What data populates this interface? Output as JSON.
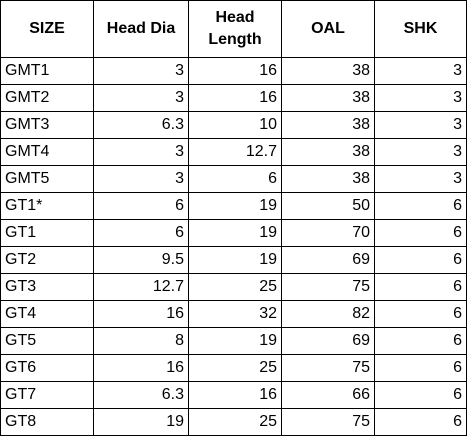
{
  "table": {
    "header": [
      "SIZE",
      "Head Dia",
      "Head Length",
      "OAL",
      "SHK"
    ],
    "rows": [
      [
        "GMT1",
        3,
        16,
        38,
        3
      ],
      [
        "GMT2",
        3,
        16,
        38,
        3
      ],
      [
        "GMT3",
        6.3,
        10,
        38,
        3
      ],
      [
        "GMT4",
        3,
        12.7,
        38,
        3
      ],
      [
        "GMT5",
        3,
        6,
        38,
        3
      ],
      [
        "GT1*",
        6,
        19,
        50,
        6
      ],
      [
        "GT1",
        6,
        19,
        70,
        6
      ],
      [
        "GT2",
        9.5,
        19,
        69,
        6
      ],
      [
        "GT3",
        12.7,
        25,
        75,
        6
      ],
      [
        "GT4",
        16,
        32,
        82,
        6
      ],
      [
        "GT5",
        8,
        19,
        69,
        6
      ],
      [
        "GT6",
        16,
        25,
        75,
        6
      ],
      [
        "GT7",
        6.3,
        16,
        66,
        6
      ],
      [
        "GT8",
        19,
        25,
        75,
        6
      ]
    ]
  }
}
